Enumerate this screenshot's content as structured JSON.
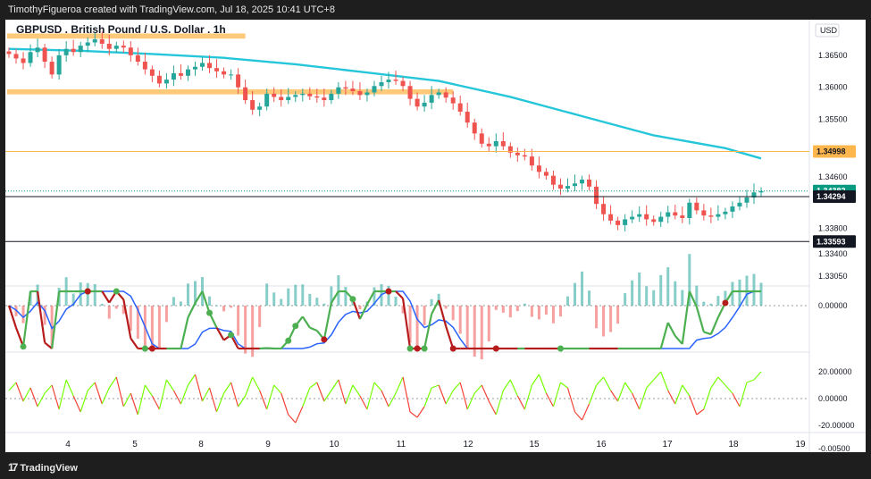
{
  "header": {
    "credit": "TimothyFigueroa created with TradingView.com, Jul 18, 2025 10:41 UTC+8"
  },
  "footer": {
    "logo": "TradingView"
  },
  "colors": {
    "up": "#26a69a",
    "down": "#ef5350",
    "ema": "#26c6da",
    "orange": "#ffb74d",
    "green_line": "#4caf50",
    "red_line": "#b71c1c",
    "blue_line": "#2962ff",
    "osc_up": "#76ff03",
    "osc_down": "#f44336",
    "last_price": "#089981"
  },
  "chart_data": {
    "type": "candlestick",
    "title": "GBPUSD . British Pound / U.S. Dollar . 1h",
    "currency": "USD",
    "ylim": [
      1.329,
      1.37
    ],
    "y_ticks": [
      "1.36500",
      "1.36000",
      "1.35500",
      "1.35000",
      "1.34600",
      "1.33800",
      "1.33400",
      "1.33050"
    ],
    "x_ticks": [
      "4",
      "5",
      "8",
      "9",
      "10",
      "11",
      "12",
      "15",
      "16",
      "17",
      "18",
      "19"
    ],
    "ema_line": [
      [
        0,
        1.366
      ],
      [
        10,
        1.3657
      ],
      [
        20,
        1.3652
      ],
      [
        30,
        1.3646
      ],
      [
        40,
        1.3636
      ],
      [
        50,
        1.3623
      ],
      [
        60,
        1.361
      ],
      [
        70,
        1.3585
      ],
      [
        80,
        1.3555
      ],
      [
        90,
        1.3525
      ],
      [
        100,
        1.3505
      ],
      [
        105,
        1.3489
      ]
    ],
    "price_lines": [
      {
        "label": "1.34998",
        "value": 1.34998,
        "style": "orange"
      },
      {
        "label": "1.34382",
        "value": 1.34382,
        "style": "last"
      },
      {
        "label": "1.34294",
        "value": 1.34294,
        "style": "black"
      },
      {
        "label": "1.33593",
        "value": 1.33593,
        "style": "black"
      }
    ],
    "zones": [
      {
        "from_x": 0,
        "to_x": 33,
        "low": 1.3676,
        "high": 1.3684
      },
      {
        "from_x": 0,
        "to_x": 62,
        "low": 1.3589,
        "high": 1.3597
      }
    ],
    "candles_close": [
      1.3652,
      1.3645,
      1.3638,
      1.3655,
      1.3662,
      1.364,
      1.362,
      1.365,
      1.366,
      1.3655,
      1.3665,
      1.367,
      1.3675,
      1.3668,
      1.366,
      1.3665,
      1.3662,
      1.365,
      1.364,
      1.3628,
      1.3618,
      1.3606,
      1.3612,
      1.3622,
      1.3618,
      1.3628,
      1.3632,
      1.3638,
      1.363,
      1.3625,
      1.362,
      1.362,
      1.36,
      1.358,
      1.3565,
      1.357,
      1.359,
      1.3585,
      1.358,
      1.3585,
      1.3588,
      1.359,
      1.3586,
      1.3584,
      1.358,
      1.359,
      1.36,
      1.3598,
      1.3594,
      1.3588,
      1.3592,
      1.3602,
      1.3608,
      1.3612,
      1.361,
      1.3602,
      1.3582,
      1.357,
      1.3576,
      1.3588,
      1.3592,
      1.3584,
      1.3575,
      1.3562,
      1.3545,
      1.3528,
      1.3512,
      1.3508,
      1.3516,
      1.3508,
      1.3498,
      1.3494,
      1.3492,
      1.3478,
      1.3468,
      1.3462,
      1.3448,
      1.3442,
      1.3446,
      1.345,
      1.3456,
      1.3445,
      1.3418,
      1.3402,
      1.3392,
      1.3385,
      1.3394,
      1.3398,
      1.3402,
      1.3394,
      1.339,
      1.3398,
      1.3405,
      1.34,
      1.3396,
      1.342,
      1.3408,
      1.34,
      1.3398,
      1.3402,
      1.3406,
      1.3414,
      1.342,
      1.3428,
      1.3436,
      1.3438
    ],
    "macd": {
      "ticks": [
        "0.00000",
        "-0.00500"
      ],
      "markers_green": [
        5,
        31,
        43,
        53,
        80,
        89,
        112,
        113,
        137,
        159,
        166,
        220
      ],
      "markers_red": [
        30,
        56,
        127,
        150,
        163,
        176,
        195,
        286
      ]
    },
    "oscillator": {
      "ticks": [
        "20.00000",
        "0.00000",
        "-20.00000"
      ],
      "values": [
        6,
        12,
        -2,
        8,
        -6,
        4,
        10,
        -8,
        14,
        2,
        -10,
        6,
        12,
        -4,
        8,
        16,
        -6,
        4,
        -12,
        10,
        2,
        -8,
        14,
        6,
        -4,
        10,
        18,
        -2,
        8,
        -10,
        4,
        12,
        -6,
        2,
        16,
        6,
        -8,
        10,
        4,
        -12,
        -18,
        -6,
        8,
        12,
        -2,
        6,
        14,
        -4,
        10,
        2,
        -8,
        12,
        6,
        -6,
        4,
        16,
        -10,
        -14,
        -6,
        8,
        10,
        -4,
        6,
        12,
        -8,
        4,
        10,
        -2,
        -12,
        6,
        14,
        2,
        -8,
        10,
        18,
        4,
        -6,
        12,
        8,
        -10,
        -16,
        -4,
        10,
        16,
        6,
        -2,
        12,
        4,
        -8,
        8,
        14,
        20,
        6,
        -4,
        10,
        2,
        -12,
        -8,
        8,
        16,
        10,
        4,
        -6,
        12,
        14,
        20
      ]
    }
  }
}
